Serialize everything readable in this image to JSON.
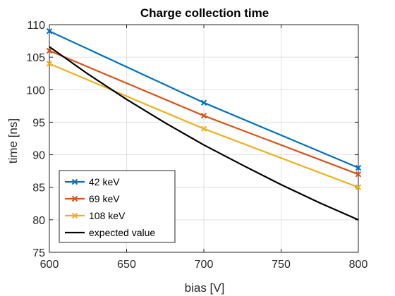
{
  "chart_data": {
    "type": "line",
    "title": "Charge collection time",
    "xlabel": "bias [V]",
    "ylabel": "time [ns]",
    "xlim": [
      600,
      800
    ],
    "ylim": [
      75,
      110
    ],
    "xticks": [
      600,
      650,
      700,
      750,
      800
    ],
    "yticks": [
      75,
      80,
      85,
      90,
      95,
      100,
      105,
      110
    ],
    "grid": true,
    "legend_position": "bottom-left",
    "series": [
      {
        "name": "42 keV",
        "color": "#0072BD",
        "marker": "x",
        "x": [
          600,
          700,
          800
        ],
        "y": [
          109,
          98,
          88
        ]
      },
      {
        "name": "69 keV",
        "color": "#D95319",
        "marker": "x",
        "x": [
          600,
          700,
          800
        ],
        "y": [
          106,
          96,
          87
        ]
      },
      {
        "name": "108 keV",
        "color": "#EDB120",
        "marker": "x",
        "x": [
          600,
          700,
          800
        ],
        "y": [
          104,
          94,
          85
        ]
      },
      {
        "name": "expected value",
        "color": "#000000",
        "marker": "none",
        "x": [
          600,
          625,
          650,
          675,
          700,
          725,
          750,
          775,
          800
        ],
        "y": [
          106.6,
          102.4,
          98.5,
          94.9,
          91.5,
          88.4,
          85.4,
          82.6,
          80.0
        ]
      }
    ]
  }
}
